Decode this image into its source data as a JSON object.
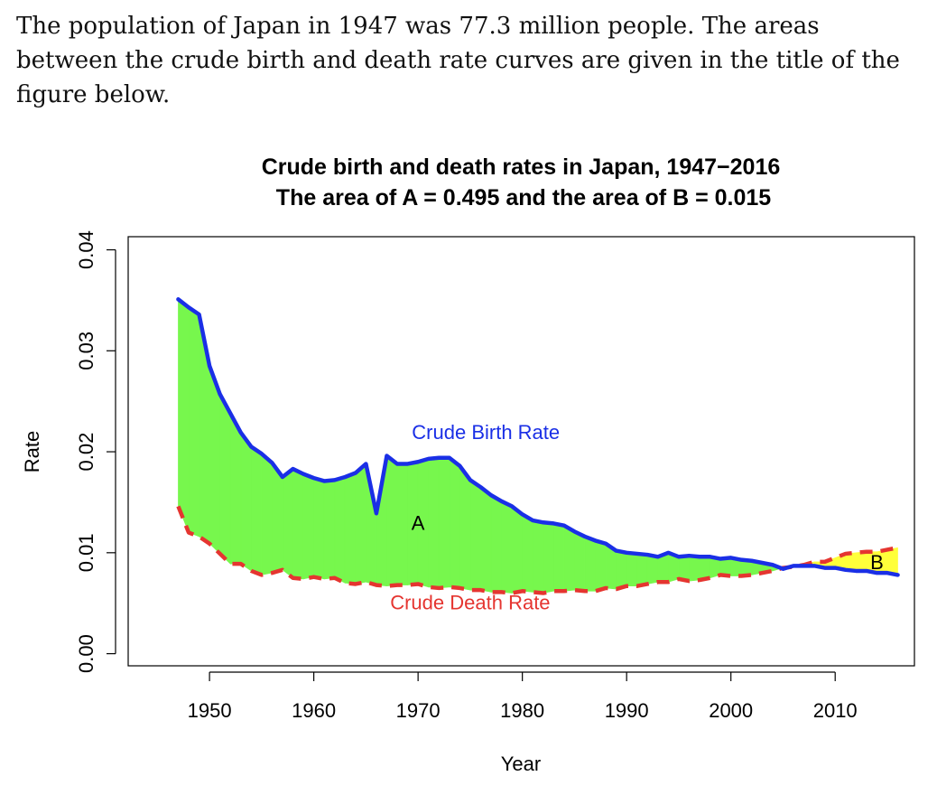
{
  "intro_text": "The population of Japan in 1947 was 77.3 million people.  The areas between the crude birth and death rate curves are given in the title of the figure below.",
  "chart_data": {
    "type": "line",
    "title": "Crude birth and death rates in Japan, 1947−2016",
    "subtitle": "The area of A = 0.495 and the area of B =  0.015",
    "xlabel": "Year",
    "ylabel": "Rate",
    "xlim": [
      1942.2,
      2017.6
    ],
    "ylim": [
      -0.0012,
      0.0413
    ],
    "x_ticks": [
      1950,
      1960,
      1970,
      1980,
      1990,
      2000,
      2010
    ],
    "x_tick_labels": [
      "1950",
      "1960",
      "1970",
      "1980",
      "1990",
      "2000",
      "2010"
    ],
    "y_ticks": [
      0.0,
      0.01,
      0.02,
      0.03,
      0.04
    ],
    "y_tick_labels": [
      "0.00",
      "0.01",
      "0.02",
      "0.03",
      "0.04"
    ],
    "grid": false,
    "x": [
      1947,
      1948,
      1949,
      1950,
      1951,
      1952,
      1953,
      1954,
      1955,
      1956,
      1957,
      1958,
      1959,
      1960,
      1961,
      1962,
      1963,
      1964,
      1965,
      1966,
      1967,
      1968,
      1969,
      1970,
      1971,
      1972,
      1973,
      1974,
      1975,
      1976,
      1977,
      1978,
      1979,
      1980,
      1981,
      1982,
      1983,
      1984,
      1985,
      1986,
      1987,
      1988,
      1989,
      1990,
      1991,
      1992,
      1993,
      1994,
      1995,
      1996,
      1997,
      1998,
      1999,
      2000,
      2001,
      2002,
      2003,
      2004,
      2005,
      2006,
      2007,
      2008,
      2009,
      2010,
      2011,
      2012,
      2013,
      2014,
      2015,
      2016
    ],
    "series": [
      {
        "name": "Crude Birth Rate",
        "color": "#1a2fe6",
        "line_style": "solid",
        "values": [
          0.0351,
          0.0343,
          0.0336,
          0.0285,
          0.0257,
          0.0238,
          0.0219,
          0.0205,
          0.0198,
          0.0189,
          0.0175,
          0.0183,
          0.0178,
          0.0174,
          0.0171,
          0.0172,
          0.0175,
          0.0179,
          0.0188,
          0.0139,
          0.0196,
          0.0188,
          0.0188,
          0.019,
          0.0193,
          0.0194,
          0.0194,
          0.0186,
          0.0172,
          0.0165,
          0.0157,
          0.0151,
          0.0146,
          0.0138,
          0.0132,
          0.013,
          0.0129,
          0.0127,
          0.0121,
          0.0116,
          0.0112,
          0.0109,
          0.0102,
          0.01,
          0.0099,
          0.0098,
          0.0096,
          0.01,
          0.0096,
          0.0097,
          0.0096,
          0.0096,
          0.0094,
          0.0095,
          0.0093,
          0.0092,
          0.009,
          0.0088,
          0.0084,
          0.0087,
          0.0087,
          0.0087,
          0.0085,
          0.0085,
          0.0083,
          0.0082,
          0.0082,
          0.008,
          0.008,
          0.0078
        ]
      },
      {
        "name": "Crude Death Rate",
        "color": "#e53530",
        "line_style": "dashed",
        "values": [
          0.0146,
          0.012,
          0.0116,
          0.0109,
          0.0099,
          0.0089,
          0.0089,
          0.0082,
          0.0078,
          0.008,
          0.0083,
          0.0075,
          0.0074,
          0.0076,
          0.0074,
          0.0075,
          0.007,
          0.0069,
          0.0071,
          0.0068,
          0.0067,
          0.0068,
          0.0068,
          0.0069,
          0.0066,
          0.0065,
          0.0066,
          0.0065,
          0.0063,
          0.0063,
          0.0061,
          0.0061,
          0.006,
          0.0062,
          0.0061,
          0.006,
          0.0062,
          0.0062,
          0.0063,
          0.0062,
          0.0062,
          0.0065,
          0.0064,
          0.0067,
          0.0067,
          0.0069,
          0.0071,
          0.0071,
          0.0074,
          0.0072,
          0.0073,
          0.0075,
          0.0078,
          0.0077,
          0.0077,
          0.0078,
          0.008,
          0.0082,
          0.0085,
          0.0086,
          0.0088,
          0.0091,
          0.0091,
          0.0095,
          0.0099,
          0.01,
          0.0101,
          0.0101,
          0.0103,
          0.0105
        ]
      }
    ],
    "fill_colors": {
      "birth_above_death": "#77f74d",
      "death_above_birth": "#ffff3a"
    },
    "annotations": [
      {
        "text": "Crude Birth Rate",
        "x": 1976.5,
        "y": 0.0218,
        "color": "#1a2fe6"
      },
      {
        "text": "A",
        "x": 1970.0,
        "y": 0.0128,
        "color": "#000000"
      },
      {
        "text": "B",
        "x": 2014.0,
        "y": 0.0089,
        "color": "#000000"
      },
      {
        "text": "Crude Death Rate",
        "x": 1975.0,
        "y": 0.0049,
        "color": "#e53530"
      }
    ]
  }
}
